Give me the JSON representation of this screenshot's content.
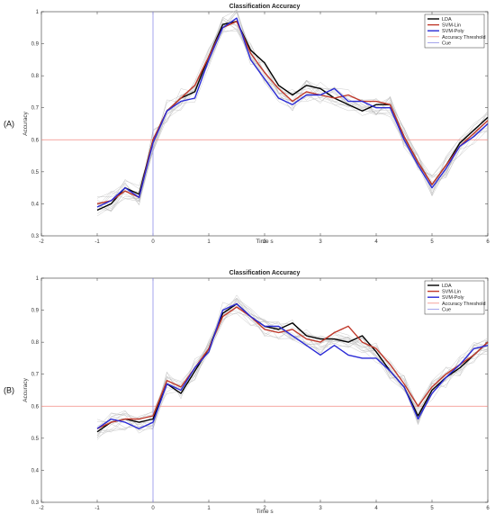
{
  "chart_data": [
    {
      "type": "line",
      "panel_label": "(A)",
      "title": "Classification Accuracy",
      "xlabel": "Time s",
      "ylabel": "Accuracy",
      "xlim": [
        -2,
        6
      ],
      "ylim": [
        0.3,
        1.0
      ],
      "xticks": [
        "-2",
        "-1",
        "0",
        "1",
        "2",
        "3",
        "4",
        "5",
        "6"
      ],
      "yticks": [
        "0.3",
        "0.4",
        "0.5",
        "0.6",
        "0.7",
        "0.8",
        "0.9",
        "1"
      ],
      "grid": false,
      "legend_position": "top-right",
      "legend": [
        "LDA",
        "SVM-Lin",
        "SVM-Poly",
        "Accuracy Threshold",
        "Cue"
      ],
      "threshold": 0.6,
      "cue_x": 0,
      "colors": {
        "LDA": "#000000",
        "SVM-Lin": "#c0392b",
        "SVM-Poly": "#2a2ad6",
        "threshold": "#f28b82",
        "cue": "#8f8fe8",
        "runs": "#b8b8b8"
      },
      "x": [
        -1,
        -0.75,
        -0.5,
        -0.25,
        0,
        0.25,
        0.5,
        0.75,
        1,
        1.25,
        1.5,
        1.75,
        2,
        2.25,
        2.5,
        2.75,
        3,
        3.25,
        3.5,
        3.75,
        4,
        4.25,
        4.5,
        4.75,
        5,
        5.25,
        5.5,
        5.75,
        6
      ],
      "series": [
        {
          "name": "LDA",
          "values": [
            0.38,
            0.4,
            0.45,
            0.43,
            0.6,
            0.69,
            0.73,
            0.75,
            0.86,
            0.96,
            0.97,
            0.88,
            0.84,
            0.77,
            0.74,
            0.77,
            0.76,
            0.73,
            0.71,
            0.69,
            0.71,
            0.71,
            0.61,
            0.53,
            0.46,
            0.52,
            0.59,
            0.63,
            0.67
          ]
        },
        {
          "name": "SVM-Lin",
          "values": [
            0.4,
            0.41,
            0.44,
            0.42,
            0.6,
            0.69,
            0.73,
            0.77,
            0.86,
            0.95,
            0.97,
            0.87,
            0.81,
            0.76,
            0.72,
            0.75,
            0.74,
            0.73,
            0.74,
            0.72,
            0.72,
            0.71,
            0.61,
            0.53,
            0.46,
            0.52,
            0.58,
            0.62,
            0.66
          ]
        },
        {
          "name": "SVM-Poly",
          "values": [
            0.39,
            0.41,
            0.45,
            0.42,
            0.59,
            0.69,
            0.72,
            0.73,
            0.85,
            0.95,
            0.98,
            0.85,
            0.79,
            0.73,
            0.71,
            0.74,
            0.74,
            0.76,
            0.72,
            0.72,
            0.7,
            0.7,
            0.6,
            0.52,
            0.45,
            0.51,
            0.58,
            0.61,
            0.65
          ]
        }
      ]
    },
    {
      "type": "line",
      "panel_label": "(B)",
      "title": "Classification Accuracy",
      "xlabel": "Time s",
      "ylabel": "Accuracy",
      "xlim": [
        -2,
        6
      ],
      "ylim": [
        0.3,
        1.0
      ],
      "xticks": [
        "-2",
        "-1",
        "0",
        "1",
        "2",
        "3",
        "4",
        "5",
        "6"
      ],
      "yticks": [
        "0.3",
        "0.4",
        "0.5",
        "0.6",
        "0.7",
        "0.8",
        "0.9",
        "1"
      ],
      "grid": false,
      "legend_position": "top-right",
      "legend": [
        "LDA",
        "SVM-Lin",
        "SVM-Poly",
        "Accuracy Threshold",
        "Cue"
      ],
      "threshold": 0.6,
      "cue_x": 0,
      "colors": {
        "LDA": "#000000",
        "SVM-Lin": "#c0392b",
        "SVM-Poly": "#2a2ad6",
        "threshold": "#f28b82",
        "cue": "#8f8fe8",
        "runs": "#b8b8b8"
      },
      "x": [
        -1,
        -0.75,
        -0.5,
        -0.25,
        0,
        0.25,
        0.5,
        0.75,
        1,
        1.25,
        1.5,
        1.75,
        2,
        2.25,
        2.5,
        2.75,
        3,
        3.25,
        3.5,
        3.75,
        4,
        4.25,
        4.5,
        4.75,
        5,
        5.25,
        5.5,
        5.75,
        6
      ],
      "series": [
        {
          "name": "LDA",
          "values": [
            0.52,
            0.55,
            0.56,
            0.55,
            0.56,
            0.67,
            0.64,
            0.71,
            0.78,
            0.89,
            0.92,
            0.88,
            0.85,
            0.84,
            0.86,
            0.82,
            0.81,
            0.81,
            0.8,
            0.82,
            0.77,
            0.71,
            0.66,
            0.57,
            0.65,
            0.69,
            0.72,
            0.76,
            0.8
          ]
        },
        {
          "name": "SVM-Lin",
          "values": [
            0.53,
            0.55,
            0.56,
            0.56,
            0.57,
            0.68,
            0.66,
            0.72,
            0.78,
            0.88,
            0.91,
            0.88,
            0.84,
            0.83,
            0.84,
            0.81,
            0.8,
            0.83,
            0.85,
            0.8,
            0.78,
            0.73,
            0.67,
            0.6,
            0.66,
            0.7,
            0.73,
            0.76,
            0.8
          ]
        },
        {
          "name": "SVM-Poly",
          "values": [
            0.53,
            0.56,
            0.55,
            0.53,
            0.55,
            0.67,
            0.65,
            0.72,
            0.77,
            0.9,
            0.92,
            0.88,
            0.85,
            0.85,
            0.82,
            0.79,
            0.76,
            0.79,
            0.76,
            0.75,
            0.75,
            0.71,
            0.66,
            0.56,
            0.64,
            0.69,
            0.73,
            0.78,
            0.79
          ]
        }
      ]
    }
  ]
}
